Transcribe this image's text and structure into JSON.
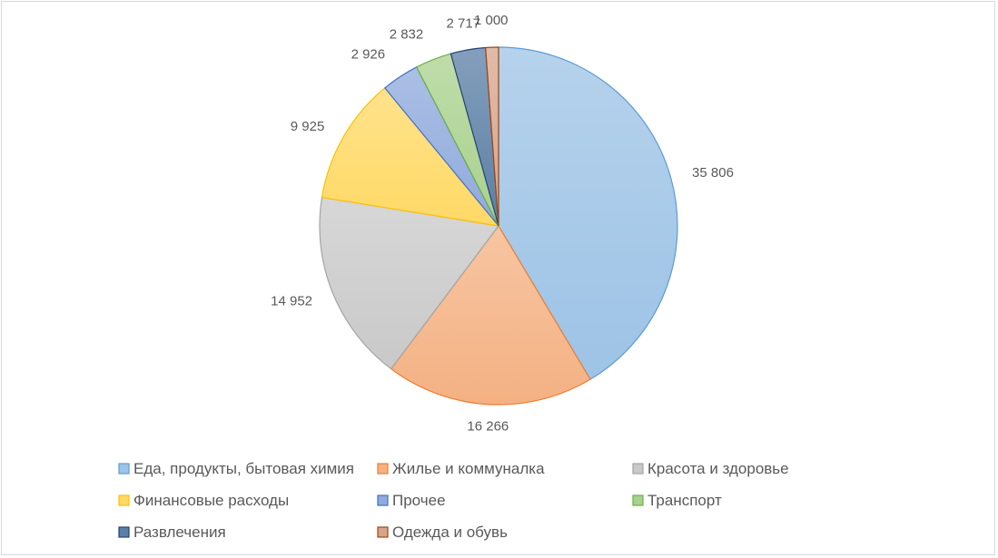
{
  "chart_data": {
    "type": "pie",
    "title": "",
    "categories": [
      "Еда, продукты, бытовая химия",
      "Жилье и коммуналка",
      "Красота и здоровье",
      "Финансовые расходы",
      "Прочее",
      "Транспорт",
      "Развлечения",
      "Одежда и обувь"
    ],
    "values": [
      35806,
      16266,
      14952,
      9925,
      2926,
      2832,
      2717,
      1000
    ],
    "value_labels": [
      "35 806",
      "16 266",
      "14 952",
      "9 925",
      "2 926",
      "2 832",
      "2 717",
      "1 000"
    ],
    "colors": [
      "#9dc3e6",
      "#f4b183",
      "#c9c9c9",
      "#ffd966",
      "#8faadc",
      "#a9d18e",
      "#5b7fa6",
      "#d7a48c"
    ],
    "stroke_colors": [
      "#5b9bd5",
      "#ed7d31",
      "#a5a5a5",
      "#ffc000",
      "#4472c4",
      "#70ad47",
      "#264478",
      "#9e480e"
    ],
    "legend_position": "bottom",
    "start_angle": "12 o'clock, clockwise"
  }
}
